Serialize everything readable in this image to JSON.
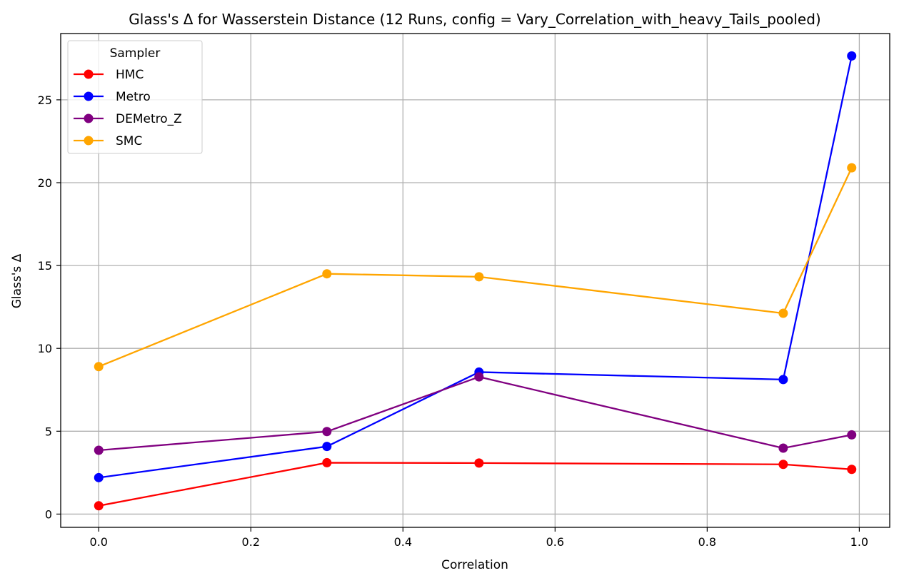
{
  "chart_data": {
    "type": "line",
    "title": "Glass's Δ for Wasserstein Distance (12 Runs, config = Vary_Correlation_with_heavy_Tails_pooled)",
    "xlabel": "Correlation",
    "ylabel": "Glass's Δ",
    "xlim": [
      -0.05,
      1.04
    ],
    "ylim": [
      -0.8,
      29.0
    ],
    "xticks": [
      0.0,
      0.2,
      0.4,
      0.6,
      0.8,
      1.0
    ],
    "xtick_labels": [
      "0.0",
      "0.2",
      "0.4",
      "0.6",
      "0.8",
      "1.0"
    ],
    "yticks": [
      0,
      5,
      10,
      15,
      20,
      25
    ],
    "ytick_labels": [
      "0",
      "5",
      "10",
      "15",
      "20",
      "25"
    ],
    "grid": true,
    "legend": {
      "title": "Sampler",
      "position": "top-left"
    },
    "x": [
      0.0,
      0.3,
      0.5,
      0.9,
      0.99
    ],
    "series": [
      {
        "name": "HMC",
        "color": "#ff0000",
        "values": [
          0.5,
          3.1,
          3.08,
          3.0,
          2.7
        ]
      },
      {
        "name": "Metro",
        "color": "#0000ff",
        "values": [
          2.2,
          4.08,
          8.57,
          8.12,
          27.65
        ]
      },
      {
        "name": "DEMetro_Z",
        "color": "#800080",
        "values": [
          3.85,
          4.98,
          8.28,
          3.98,
          4.78
        ]
      },
      {
        "name": "SMC",
        "color": "#ffa500",
        "values": [
          8.9,
          14.5,
          14.32,
          12.12,
          20.9
        ]
      }
    ]
  }
}
